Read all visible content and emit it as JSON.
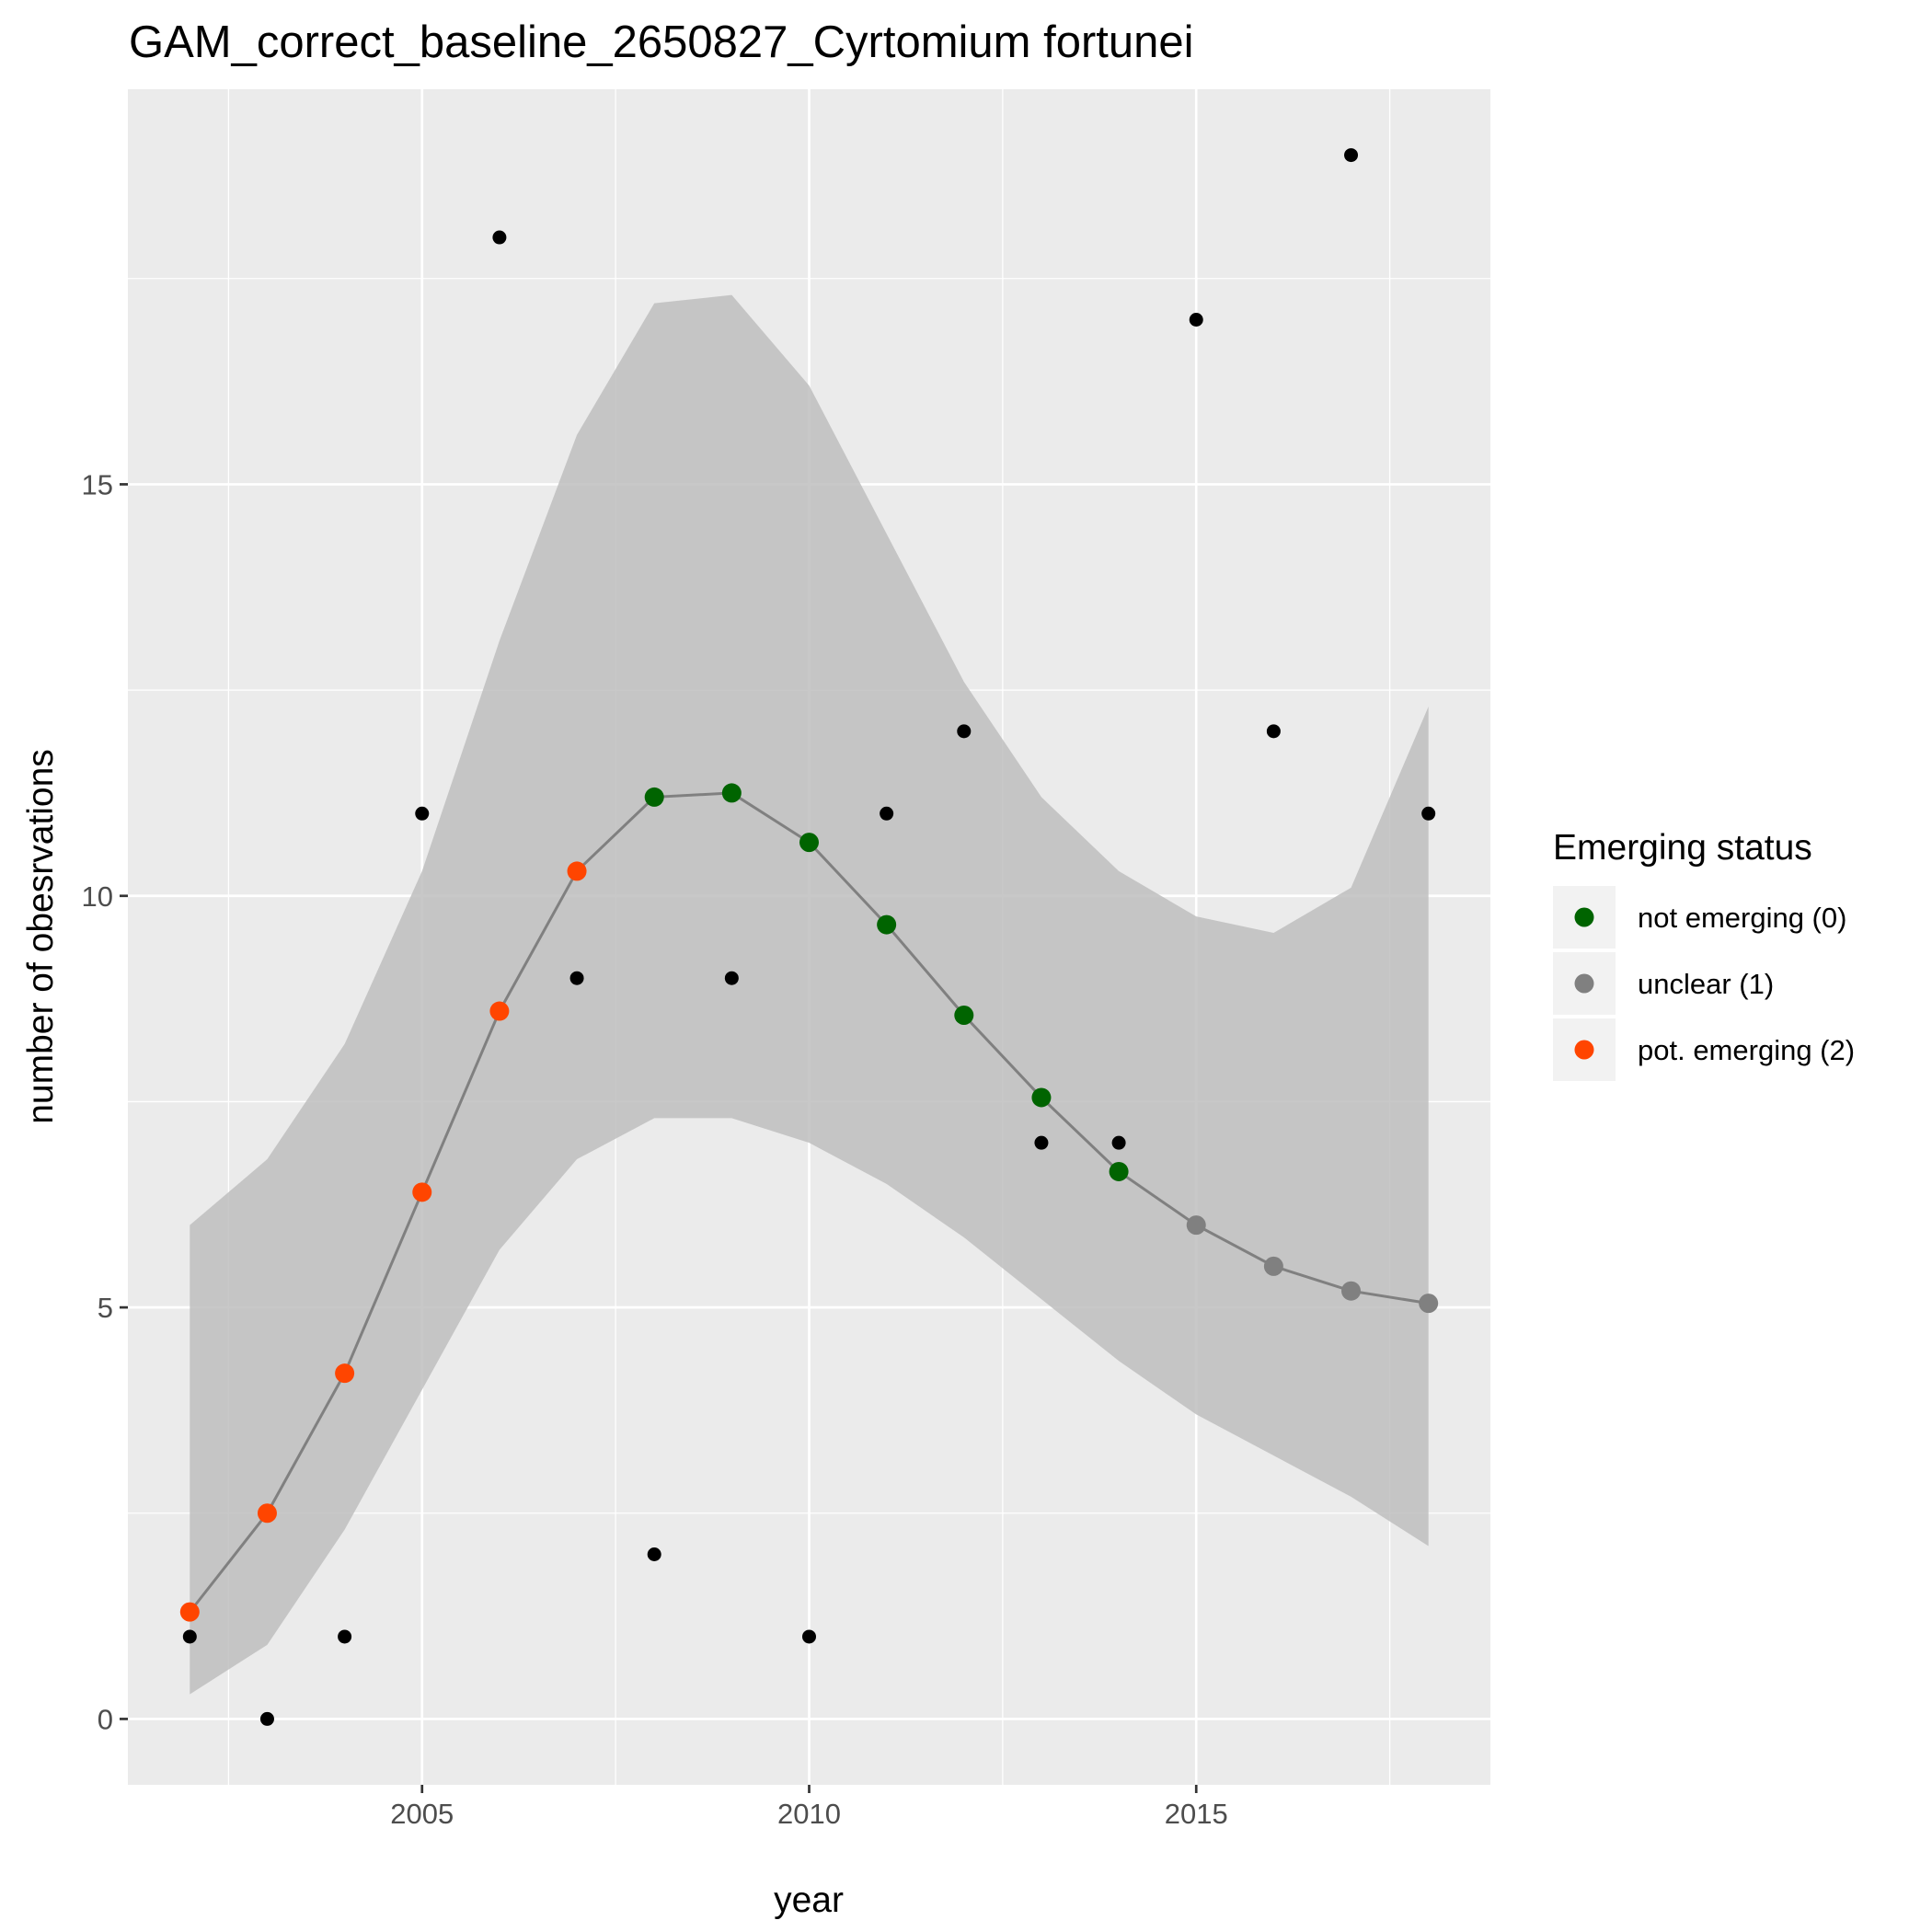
{
  "chart_data": {
    "type": "scatter",
    "title": "GAM_correct_baseline_2650827_Cyrtomium fortunei",
    "xlabel": "year",
    "ylabel": "number of obesrvations",
    "xlim": [
      2001.2,
      2018.8
    ],
    "ylim": [
      -0.8,
      19.8
    ],
    "x_ticks": [
      2005,
      2010,
      2015
    ],
    "x_tick_labels": [
      "2005",
      "2010",
      "2015"
    ],
    "y_ticks": [
      0,
      5,
      10,
      15
    ],
    "y_tick_labels": [
      "0",
      "5",
      "10",
      "15"
    ],
    "grid": true,
    "legend": {
      "title": "Emerging status",
      "position": "right",
      "items": [
        {
          "label": "not emerging (0)",
          "color": "#006400"
        },
        {
          "label": "unclear (1)",
          "color": "#808080"
        },
        {
          "label": "pot. emerging (2)",
          "color": "#FF4500"
        }
      ]
    },
    "observations": {
      "color": "#000000",
      "x": [
        2002,
        2003,
        2004,
        2005,
        2006,
        2007,
        2008,
        2009,
        2010,
        2011,
        2012,
        2013,
        2014,
        2015,
        2016,
        2017,
        2018
      ],
      "y": [
        1,
        0,
        1,
        11,
        18,
        9,
        2,
        9,
        1,
        11,
        12,
        7,
        7,
        17,
        12,
        19,
        11
      ]
    },
    "gam_fit": {
      "line_color": "#808080",
      "ribbon_color": "#bebebe",
      "x": [
        2002,
        2003,
        2004,
        2005,
        2006,
        2007,
        2008,
        2009,
        2010,
        2011,
        2012,
        2013,
        2014,
        2015,
        2016,
        2017,
        2018
      ],
      "y": [
        1.3,
        2.5,
        4.2,
        6.4,
        8.6,
        10.3,
        11.2,
        11.25,
        10.65,
        9.65,
        8.55,
        7.55,
        6.65,
        6.0,
        5.5,
        5.2,
        5.05
      ],
      "lower": [
        0.3,
        0.9,
        2.3,
        4.0,
        5.7,
        6.8,
        7.3,
        7.3,
        7.0,
        6.5,
        5.85,
        5.1,
        4.35,
        3.7,
        3.2,
        2.7,
        2.1
      ],
      "upper": [
        6.0,
        6.8,
        8.2,
        10.3,
        13.1,
        15.6,
        17.2,
        17.3,
        16.2,
        14.4,
        12.6,
        11.2,
        10.3,
        9.75,
        9.55,
        10.1,
        12.3
      ],
      "status": [
        2,
        2,
        2,
        2,
        2,
        2,
        0,
        0,
        0,
        0,
        0,
        0,
        0,
        1,
        1,
        1,
        1
      ]
    }
  }
}
